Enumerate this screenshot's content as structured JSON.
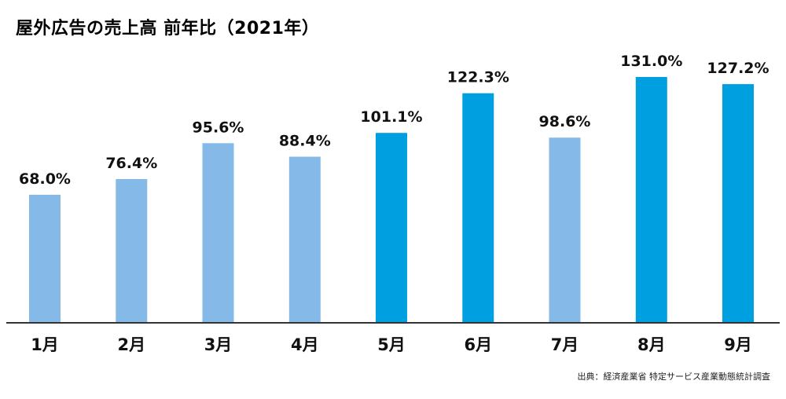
{
  "chart_data": {
    "type": "bar",
    "title": "屋外広告の売上高 前年比（2021年）",
    "categories": [
      "1月",
      "2月",
      "3月",
      "4月",
      "5月",
      "6月",
      "7月",
      "8月",
      "9月"
    ],
    "values": [
      68.0,
      76.4,
      95.6,
      88.4,
      101.1,
      122.3,
      98.6,
      131.0,
      127.2
    ],
    "data_labels": [
      "68.0%",
      "76.4%",
      "95.6%",
      "88.4%",
      "101.1%",
      "122.3%",
      "98.6%",
      "131.0%",
      "127.2%"
    ],
    "unit": "%",
    "xlabel": "",
    "ylabel": "",
    "ylim": [
      0,
      131.0
    ],
    "grid": false,
    "colors": {
      "below_100": "#85b9e7",
      "at_or_above_100": "#00a0e0",
      "axis": "#333333"
    }
  },
  "source_note": "出典：経済産業省 特定サービス産業動態統計調査"
}
